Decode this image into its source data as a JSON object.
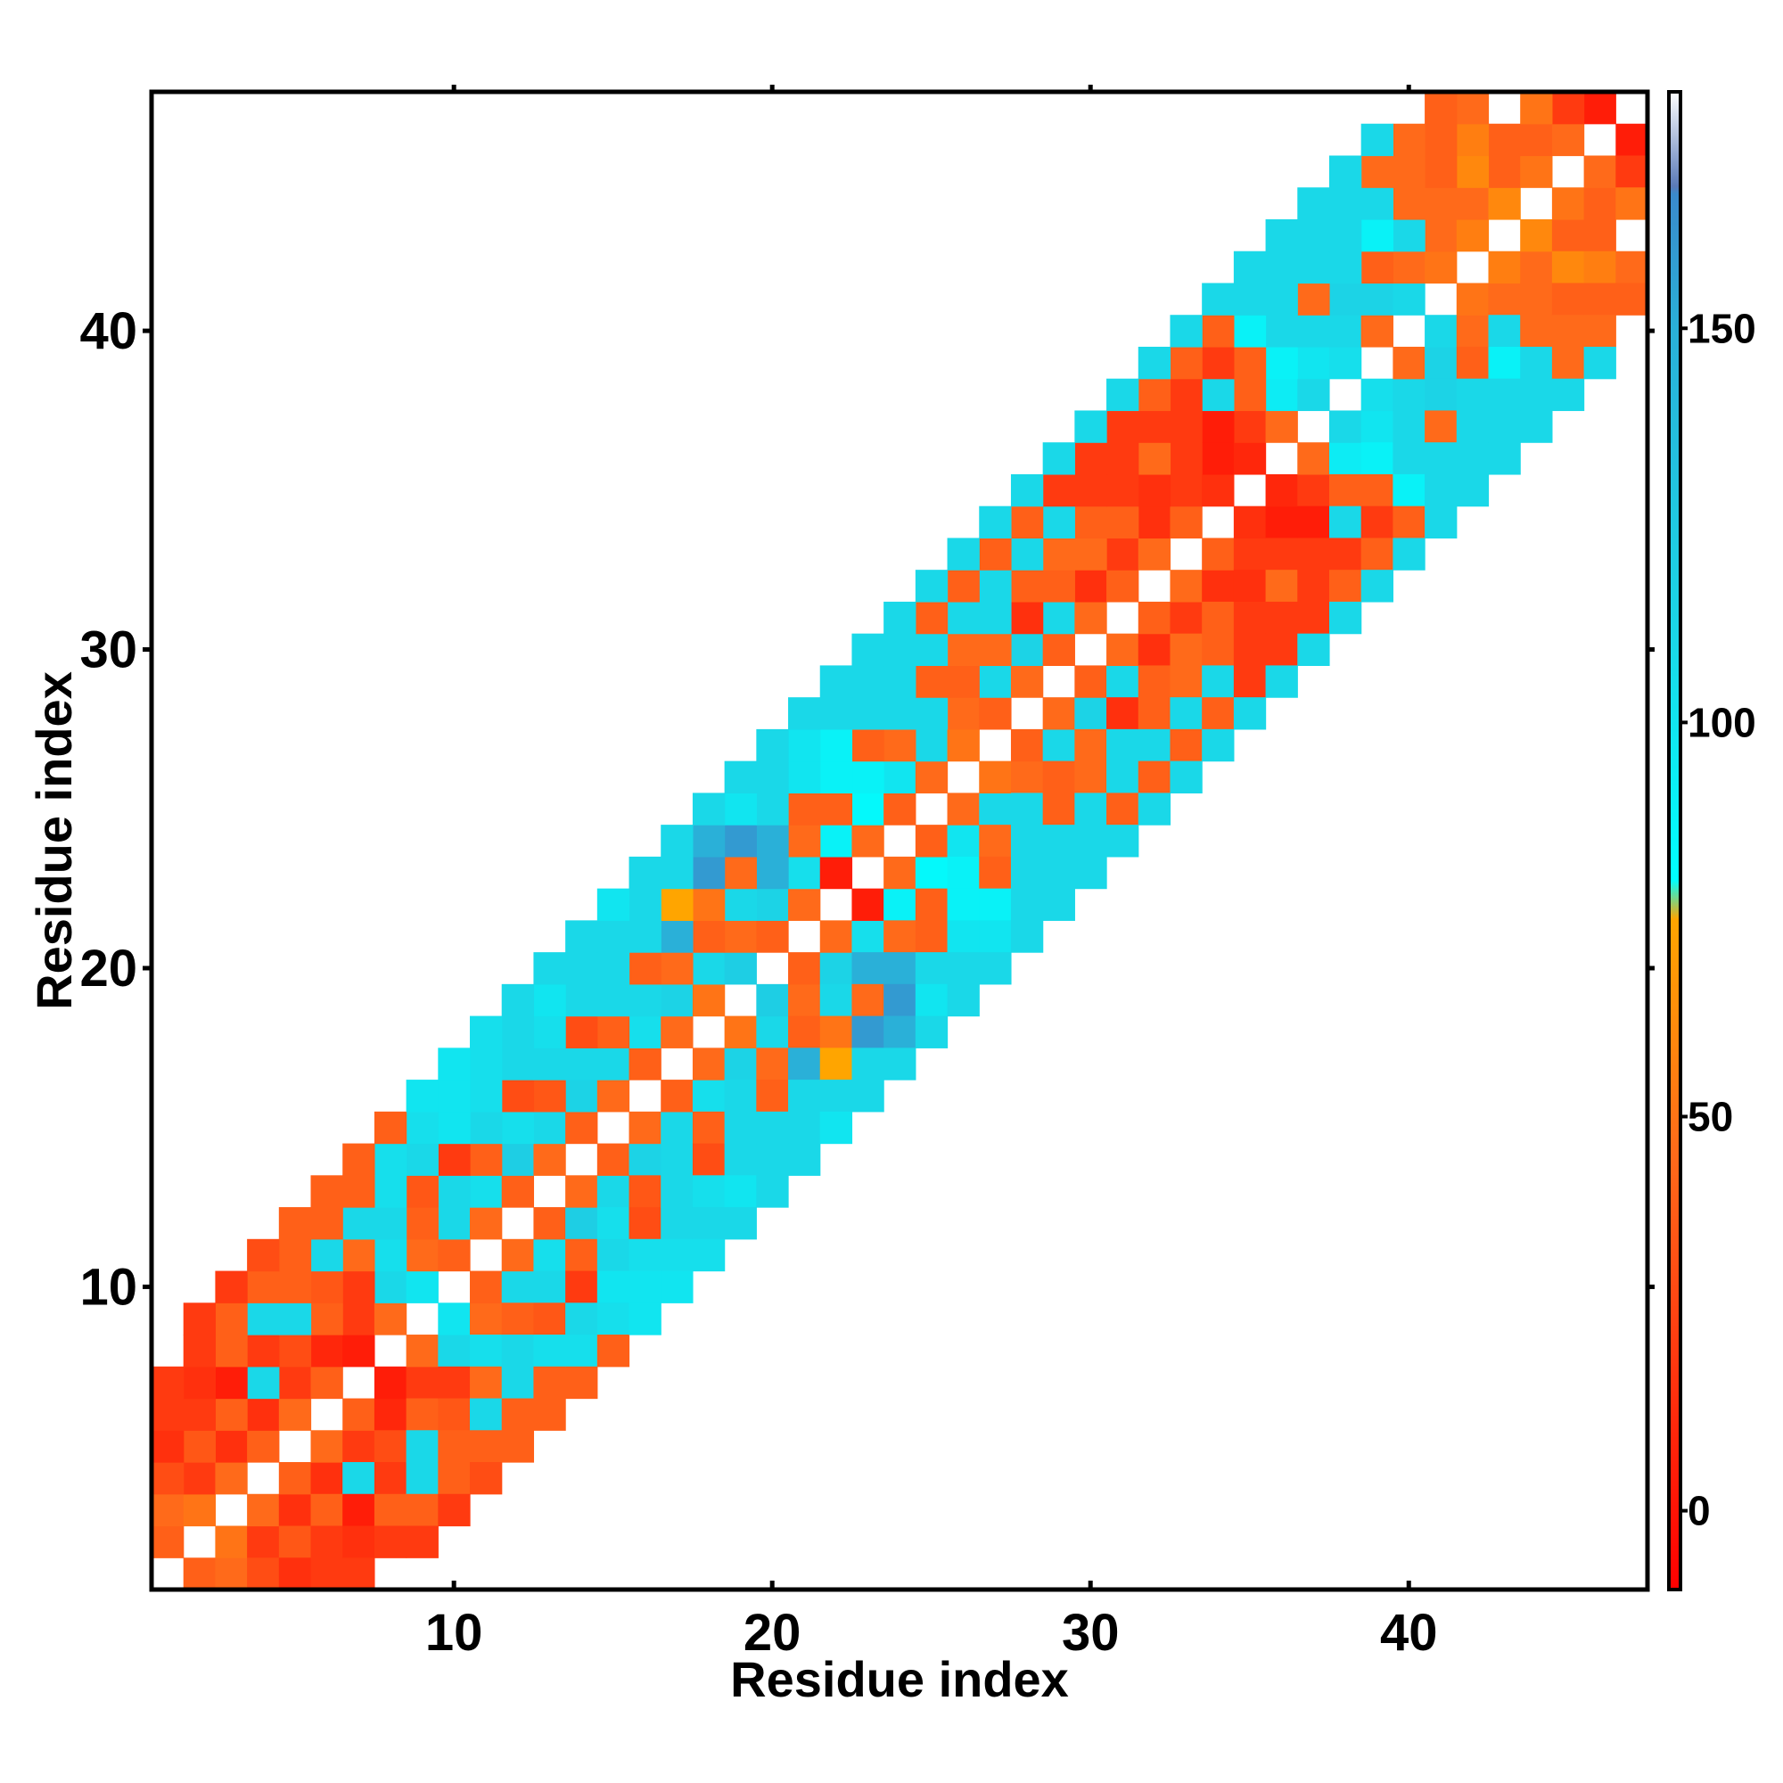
{
  "chart_data": {
    "type": "heatmap",
    "title": "",
    "xlabel": "Residue index",
    "ylabel": "Residue index",
    "xlim": [
      0.5,
      47.5
    ],
    "ylim": [
      0.5,
      47.5
    ],
    "x_ticks": [
      10,
      20,
      30,
      40
    ],
    "y_ticks": [
      10,
      20,
      30,
      40
    ],
    "grid": false,
    "colorbar": {
      "range": [
        -10,
        180
      ],
      "ticks": [
        0,
        50,
        100,
        150
      ],
      "max_color": "#ffffff",
      "stops": [
        {
          "value": -10,
          "color": "#ff0000"
        },
        {
          "value": 20,
          "color": "#ff3a10"
        },
        {
          "value": 45,
          "color": "#ff6a1a"
        },
        {
          "value": 75,
          "color": "#ffa500"
        },
        {
          "value": 80,
          "color": "#00ffff"
        },
        {
          "value": 110,
          "color": "#1ad8e8"
        },
        {
          "value": 150,
          "color": "#2ab0d8"
        },
        {
          "value": 167,
          "color": "#3a8acc"
        },
        {
          "value": 168,
          "color": "#5a7ab8"
        },
        {
          "value": 180,
          "color": "#ffffff"
        }
      ]
    },
    "legend_position": "right",
    "band": {
      "description_free": true,
      "offsets": [
        1,
        2,
        3,
        4,
        5,
        6,
        7,
        8
      ],
      "diagonal_value": null
    },
    "cells": [
      [
        1,
        2,
        40
      ],
      [
        1,
        3,
        45
      ],
      [
        2,
        3,
        50
      ],
      [
        2,
        4,
        20
      ],
      [
        3,
        4,
        45
      ],
      [
        3,
        5,
        15
      ],
      [
        4,
        5,
        40
      ],
      [
        4,
        6,
        15
      ],
      [
        5,
        6,
        45
      ],
      [
        5,
        7,
        20
      ],
      [
        6,
        7,
        40
      ],
      [
        6,
        8,
        10
      ],
      [
        7,
        8,
        5
      ],
      [
        7,
        9,
        20
      ],
      [
        8,
        9,
        45
      ],
      [
        8,
        10,
        110
      ],
      [
        9,
        10,
        100
      ],
      [
        9,
        11,
        45
      ],
      [
        10,
        11,
        40
      ],
      [
        10,
        12,
        110
      ],
      [
        11,
        12,
        45
      ],
      [
        11,
        13,
        105
      ],
      [
        12,
        13,
        40
      ],
      [
        12,
        14,
        120
      ],
      [
        13,
        14,
        45
      ],
      [
        13,
        15,
        110
      ],
      [
        14,
        15,
        40
      ],
      [
        14,
        16,
        115
      ],
      [
        15,
        16,
        45
      ],
      [
        15,
        17,
        110
      ],
      [
        16,
        17,
        40
      ],
      [
        16,
        18,
        105
      ],
      [
        17,
        18,
        45
      ],
      [
        17,
        19,
        115
      ],
      [
        18,
        19,
        50
      ],
      [
        18,
        20,
        110
      ],
      [
        19,
        20,
        120
      ],
      [
        19,
        21,
        45
      ],
      [
        20,
        21,
        40
      ],
      [
        20,
        22,
        115
      ],
      [
        21,
        22,
        45
      ],
      [
        21,
        23,
        105
      ],
      [
        22,
        23,
        5
      ],
      [
        22,
        24,
        90
      ],
      [
        23,
        24,
        45
      ],
      [
        23,
        25,
        85
      ],
      [
        24,
        25,
        40
      ],
      [
        24,
        26,
        100
      ],
      [
        25,
        26,
        45
      ],
      [
        25,
        27,
        110
      ],
      [
        26,
        27,
        50
      ],
      [
        26,
        28,
        45
      ],
      [
        27,
        28,
        40
      ],
      [
        27,
        29,
        110
      ],
      [
        28,
        29,
        45
      ],
      [
        28,
        30,
        115
      ],
      [
        29,
        30,
        40
      ],
      [
        29,
        31,
        110
      ],
      [
        30,
        31,
        45
      ],
      [
        30,
        32,
        15
      ],
      [
        31,
        32,
        40
      ],
      [
        31,
        33,
        20
      ],
      [
        32,
        33,
        45
      ],
      [
        32,
        34,
        15
      ],
      [
        33,
        34,
        40
      ],
      [
        33,
        35,
        20
      ],
      [
        34,
        35,
        15
      ],
      [
        34,
        36,
        5
      ],
      [
        35,
        36,
        10
      ],
      [
        35,
        37,
        20
      ],
      [
        36,
        37,
        45
      ],
      [
        36,
        38,
        95
      ],
      [
        37,
        38,
        110
      ],
      [
        37,
        39,
        100
      ],
      [
        38,
        39,
        105
      ],
      [
        38,
        40,
        110
      ],
      [
        39,
        40,
        45
      ],
      [
        39,
        41,
        115
      ],
      [
        40,
        41,
        110
      ],
      [
        40,
        42,
        45
      ],
      [
        41,
        42,
        50
      ],
      [
        41,
        43,
        45
      ],
      [
        42,
        43,
        55
      ],
      [
        42,
        44,
        45
      ],
      [
        43,
        44,
        60
      ],
      [
        43,
        45,
        40
      ],
      [
        44,
        45,
        50
      ],
      [
        44,
        46,
        40
      ],
      [
        45,
        46,
        45
      ],
      [
        46,
        47,
        5
      ],
      [
        45,
        47,
        20
      ],
      [
        1,
        4,
        30
      ],
      [
        2,
        5,
        35
      ],
      [
        3,
        6,
        40
      ],
      [
        4,
        7,
        110
      ],
      [
        5,
        8,
        30
      ],
      [
        6,
        9,
        40
      ],
      [
        7,
        10,
        20
      ],
      [
        8,
        11,
        105
      ],
      [
        9,
        12,
        40
      ],
      [
        10,
        13,
        110
      ],
      [
        11,
        14,
        40
      ],
      [
        12,
        15,
        105
      ],
      [
        13,
        16,
        35
      ],
      [
        14,
        17,
        110
      ],
      [
        15,
        18,
        40
      ],
      [
        16,
        19,
        110
      ],
      [
        17,
        20,
        45
      ],
      [
        18,
        21,
        40
      ],
      [
        19,
        22,
        110
      ],
      [
        20,
        23,
        150
      ],
      [
        21,
        24,
        45
      ],
      [
        22,
        25,
        40
      ],
      [
        23,
        26,
        90
      ],
      [
        24,
        27,
        45
      ],
      [
        25,
        28,
        110
      ],
      [
        26,
        29,
        40
      ],
      [
        27,
        30,
        45
      ],
      [
        28,
        31,
        15
      ],
      [
        29,
        32,
        40
      ],
      [
        30,
        33,
        45
      ],
      [
        31,
        34,
        40
      ],
      [
        32,
        35,
        15
      ],
      [
        33,
        36,
        20
      ],
      [
        34,
        37,
        5
      ],
      [
        35,
        38,
        40
      ],
      [
        36,
        39,
        90
      ],
      [
        37,
        40,
        110
      ],
      [
        38,
        41,
        115
      ],
      [
        39,
        42,
        40
      ],
      [
        40,
        43,
        110
      ],
      [
        41,
        44,
        45
      ],
      [
        42,
        45,
        60
      ],
      [
        43,
        46,
        40
      ],
      [
        44,
        47,
        50
      ],
      [
        1,
        5,
        15
      ],
      [
        2,
        6,
        20
      ],
      [
        3,
        7,
        5
      ],
      [
        4,
        8,
        20
      ],
      [
        5,
        9,
        110
      ],
      [
        6,
        10,
        35
      ],
      [
        7,
        11,
        45
      ],
      [
        8,
        12,
        110
      ],
      [
        9,
        13,
        35
      ],
      [
        10,
        14,
        20
      ],
      [
        11,
        15,
        110
      ],
      [
        12,
        16,
        30
      ],
      [
        13,
        17,
        110
      ],
      [
        14,
        18,
        30
      ],
      [
        15,
        19,
        110
      ],
      [
        16,
        20,
        40
      ],
      [
        17,
        21,
        150
      ],
      [
        18,
        22,
        50
      ],
      [
        19,
        23,
        45
      ],
      [
        20,
        24,
        150
      ],
      [
        21,
        25,
        40
      ],
      [
        22,
        26,
        90
      ],
      [
        23,
        27,
        40
      ],
      [
        24,
        28,
        110
      ],
      [
        25,
        29,
        40
      ],
      [
        26,
        30,
        45
      ],
      [
        27,
        31,
        110
      ],
      [
        28,
        32,
        40
      ],
      [
        29,
        33,
        45
      ],
      [
        30,
        34,
        40
      ],
      [
        31,
        35,
        20
      ],
      [
        32,
        36,
        45
      ],
      [
        33,
        37,
        20
      ],
      [
        34,
        38,
        110
      ],
      [
        35,
        39,
        40
      ],
      [
        36,
        40,
        110
      ],
      [
        37,
        41,
        45
      ],
      [
        38,
        42,
        110
      ],
      [
        39,
        43,
        90
      ],
      [
        40,
        44,
        45
      ],
      [
        41,
        45,
        40
      ],
      [
        42,
        46,
        55
      ],
      [
        1,
        6,
        20
      ],
      [
        2,
        7,
        15
      ],
      [
        3,
        8,
        40
      ],
      [
        4,
        9,
        110
      ],
      [
        5,
        10,
        40
      ],
      [
        6,
        11,
        110
      ],
      [
        7,
        12,
        110
      ],
      [
        8,
        13,
        105
      ],
      [
        9,
        14,
        110
      ],
      [
        10,
        15,
        100
      ],
      [
        11,
        16,
        105
      ],
      [
        12,
        17,
        110
      ],
      [
        13,
        18,
        105
      ],
      [
        14,
        19,
        110
      ],
      [
        15,
        20,
        110
      ],
      [
        16,
        21,
        110
      ],
      [
        17,
        22,
        75
      ],
      [
        18,
        23,
        160
      ],
      [
        19,
        24,
        160
      ],
      [
        20,
        25,
        110
      ],
      [
        21,
        26,
        100
      ],
      [
        22,
        27,
        90
      ],
      [
        23,
        28,
        110
      ],
      [
        24,
        29,
        110
      ],
      [
        25,
        30,
        110
      ],
      [
        26,
        31,
        110
      ],
      [
        27,
        32,
        110
      ],
      [
        28,
        33,
        110
      ],
      [
        29,
        34,
        110
      ],
      [
        30,
        35,
        20
      ],
      [
        31,
        36,
        20
      ],
      [
        32,
        37,
        20
      ],
      [
        33,
        38,
        20
      ],
      [
        34,
        39,
        20
      ],
      [
        35,
        40,
        90
      ],
      [
        36,
        41,
        110
      ],
      [
        37,
        42,
        110
      ],
      [
        38,
        43,
        110
      ],
      [
        39,
        44,
        110
      ],
      [
        40,
        45,
        45
      ],
      [
        41,
        46,
        40
      ],
      [
        42,
        47,
        45
      ],
      [
        1,
        7,
        20
      ],
      [
        2,
        8,
        20
      ],
      [
        3,
        9,
        40
      ],
      [
        4,
        10,
        40
      ],
      [
        5,
        11,
        40
      ],
      [
        6,
        12,
        40
      ],
      [
        7,
        13,
        40
      ],
      [
        8,
        14,
        105
      ],
      [
        9,
        15,
        105
      ],
      [
        10,
        16,
        100
      ],
      [
        11,
        17,
        105
      ],
      [
        12,
        18,
        110
      ],
      [
        13,
        19,
        100
      ],
      [
        14,
        20,
        110
      ],
      [
        15,
        21,
        110
      ],
      [
        16,
        22,
        110
      ],
      [
        17,
        23,
        110
      ],
      [
        18,
        24,
        150
      ],
      [
        19,
        25,
        100
      ],
      [
        20,
        26,
        110
      ],
      [
        21,
        27,
        100
      ],
      [
        22,
        28,
        110
      ],
      [
        23,
        29,
        110
      ],
      [
        24,
        30,
        110
      ],
      [
        25,
        31,
        40
      ],
      [
        26,
        32,
        40
      ],
      [
        27,
        33,
        40
      ],
      [
        28,
        34,
        40
      ],
      [
        29,
        35,
        20
      ],
      [
        30,
        36,
        20
      ],
      [
        31,
        37,
        20
      ],
      [
        32,
        38,
        40
      ],
      [
        33,
        39,
        40
      ],
      [
        34,
        40,
        40
      ],
      [
        35,
        41,
        110
      ],
      [
        36,
        42,
        110
      ],
      [
        37,
        43,
        110
      ],
      [
        38,
        44,
        110
      ],
      [
        39,
        45,
        45
      ],
      [
        40,
        46,
        45
      ],
      [
        41,
        47,
        40
      ],
      [
        2,
        9,
        20
      ],
      [
        3,
        10,
        20
      ],
      [
        4,
        11,
        30
      ],
      [
        5,
        12,
        40
      ],
      [
        6,
        13,
        40
      ],
      [
        7,
        14,
        40
      ],
      [
        8,
        15,
        40
      ],
      [
        9,
        16,
        100
      ],
      [
        10,
        17,
        100
      ],
      [
        11,
        18,
        105
      ],
      [
        12,
        19,
        110
      ],
      [
        13,
        20,
        110
      ],
      [
        14,
        21,
        110
      ],
      [
        15,
        22,
        100
      ],
      [
        16,
        23,
        110
      ],
      [
        17,
        24,
        110
      ],
      [
        18,
        25,
        110
      ],
      [
        19,
        26,
        110
      ],
      [
        20,
        27,
        110
      ],
      [
        21,
        28,
        110
      ],
      [
        22,
        29,
        110
      ],
      [
        23,
        30,
        110
      ],
      [
        24,
        31,
        110
      ],
      [
        25,
        32,
        110
      ],
      [
        26,
        33,
        110
      ],
      [
        27,
        34,
        110
      ],
      [
        28,
        35,
        110
      ],
      [
        29,
        36,
        110
      ],
      [
        30,
        37,
        110
      ],
      [
        31,
        38,
        110
      ],
      [
        32,
        39,
        110
      ],
      [
        33,
        40,
        110
      ],
      [
        34,
        41,
        110
      ],
      [
        35,
        42,
        110
      ],
      [
        36,
        43,
        110
      ],
      [
        37,
        44,
        110
      ],
      [
        38,
        45,
        110
      ],
      [
        39,
        46,
        110
      ]
    ]
  }
}
